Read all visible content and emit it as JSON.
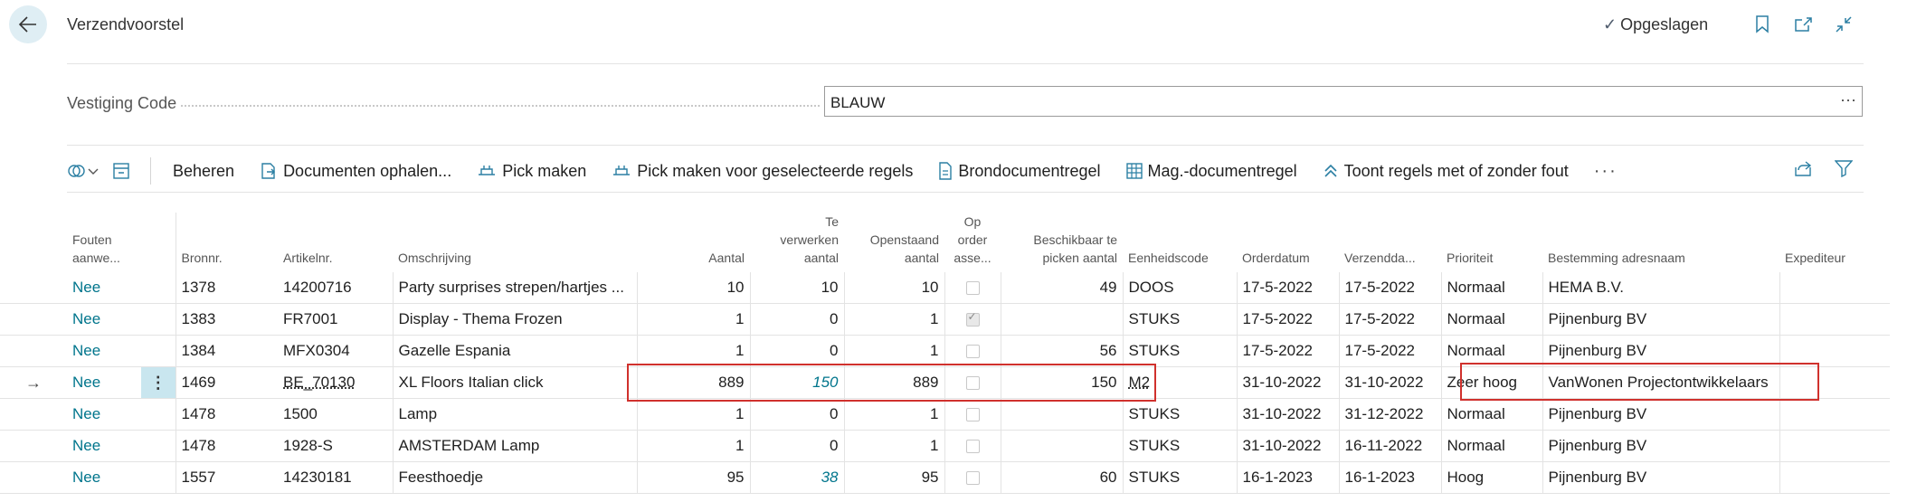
{
  "header": {
    "title": "Verzendvoorstel",
    "saved_label": "Opgeslagen"
  },
  "field": {
    "label": "Vestiging Code",
    "value": "BLAUW",
    "more": "···"
  },
  "toolbar": {
    "beheren": "Beheren",
    "documenten": "Documenten ophalen...",
    "pick": "Pick maken",
    "pick_selected": "Pick maken voor geselecteerde regels",
    "brondocument": "Brondocumentregel",
    "mag_document": "Mag.-documentregel",
    "toont": "Toont regels met of zonder fout",
    "more": "···"
  },
  "table": {
    "headers": {
      "fouten": [
        "Fouten",
        "aanwe..."
      ],
      "bronnr": "Bronnr.",
      "artikelnr": "Artikelnr.",
      "omschrijving": "Omschrijving",
      "aantal": "Aantal",
      "te_verwerken": [
        "Te",
        "verwerken",
        "aantal"
      ],
      "openstaand": [
        "Openstaand",
        "aantal"
      ],
      "op_order": [
        "Op",
        "order",
        "asse..."
      ],
      "beschikbaar": [
        "Beschikbaar te",
        "picken aantal"
      ],
      "eenheidscode": "Eenheidscode",
      "orderdatum": "Orderdatum",
      "verzenddatum": "Verzendda...",
      "prioriteit": "Prioriteit",
      "bestemming": "Bestemming adresnaam",
      "expediteur": "Expediteur"
    },
    "rows": [
      {
        "fouten": "Nee",
        "bronnr": "1378",
        "artikel": "14200716",
        "omschrijving": "Party surprises strepen/hartjes ...",
        "aantal": "10",
        "te_verwerken": "10",
        "openstaand": "10",
        "op_order": false,
        "beschikbaar": "49",
        "eenheid": "DOOS",
        "orderdatum": "17-5-2022",
        "verzenddatum": "17-5-2022",
        "prioriteit": "Normaal",
        "bestemming": "HEMA B.V."
      },
      {
        "fouten": "Nee",
        "bronnr": "1383",
        "artikel": "FR7001",
        "omschrijving": "Display - Thema Frozen",
        "aantal": "1",
        "te_verwerken": "0",
        "openstaand": "1",
        "op_order": true,
        "beschikbaar": "",
        "eenheid": "STUKS",
        "orderdatum": "17-5-2022",
        "verzenddatum": "17-5-2022",
        "prioriteit": "Normaal",
        "bestemming": "Pijnenburg BV"
      },
      {
        "fouten": "Nee",
        "bronnr": "1384",
        "artikel": "MFX0304",
        "omschrijving": "Gazelle Espania",
        "aantal": "1",
        "te_verwerken": "0",
        "openstaand": "1",
        "op_order": false,
        "beschikbaar": "56",
        "eenheid": "STUKS",
        "orderdatum": "17-5-2022",
        "verzenddatum": "17-5-2022",
        "prioriteit": "Normaal",
        "bestemming": "Pijnenburg BV"
      },
      {
        "fouten": "Nee",
        "bronnr": "1469",
        "artikel": "BE_70130",
        "omschrijving": "XL Floors Italian click",
        "aantal": "889",
        "te_verwerken": "150",
        "openstaand": "889",
        "op_order": false,
        "beschikbaar": "150",
        "eenheid": "M2",
        "orderdatum": "31-10-2022",
        "verzenddatum": "31-10-2022",
        "prioriteit": "Zeer hoog",
        "bestemming": "VanWonen Projectontwikkelaars"
      },
      {
        "fouten": "Nee",
        "bronnr": "1478",
        "artikel": "1500",
        "omschrijving": "Lamp",
        "aantal": "1",
        "te_verwerken": "0",
        "openstaand": "1",
        "op_order": false,
        "beschikbaar": "",
        "eenheid": "STUKS",
        "orderdatum": "31-10-2022",
        "verzenddatum": "31-12-2022",
        "prioriteit": "Normaal",
        "bestemming": "Pijnenburg BV"
      },
      {
        "fouten": "Nee",
        "bronnr": "1478",
        "artikel": "1928-S",
        "omschrijving": "AMSTERDAM Lamp",
        "aantal": "1",
        "te_verwerken": "0",
        "openstaand": "1",
        "op_order": false,
        "beschikbaar": "",
        "eenheid": "STUKS",
        "orderdatum": "31-10-2022",
        "verzenddatum": "16-11-2022",
        "prioriteit": "Normaal",
        "bestemming": "Pijnenburg BV"
      },
      {
        "fouten": "Nee",
        "bronnr": "1557",
        "artikel": "14230181",
        "omschrijving": "Feesthoedje",
        "aantal": "95",
        "te_verwerken": "38",
        "openstaand": "95",
        "op_order": false,
        "beschikbaar": "60",
        "eenheid": "STUKS",
        "orderdatum": "16-1-2023",
        "verzenddatum": "16-1-2023",
        "prioriteit": "Hoog",
        "bestemming": "Pijnenburg BV"
      }
    ]
  },
  "colors": {
    "link": "#00758c",
    "highlight": "#d0312d",
    "selected": "#c9e6ef"
  }
}
